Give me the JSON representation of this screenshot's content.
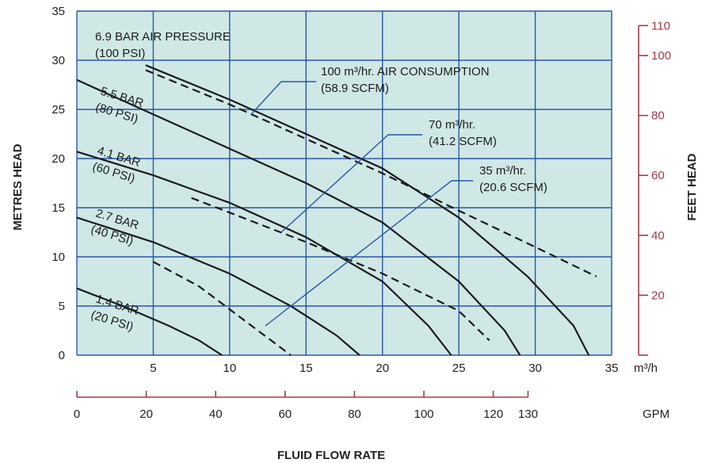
{
  "chart_data": {
    "type": "line",
    "xlabel": "FLUID FLOW RATE",
    "x_unit": "m³/h",
    "x2_unit": "GPM",
    "ylabel": "METRES HEAD",
    "y2label": "FEET HEAD",
    "xlim": [
      0,
      35
    ],
    "ylim": [
      0,
      35
    ],
    "x_ticks": [
      "5",
      "10",
      "15",
      "20",
      "25",
      "30",
      "35"
    ],
    "y_ticks": [
      "0",
      "5",
      "10",
      "15",
      "20",
      "25",
      "30",
      "35"
    ],
    "y2_ticks": [
      "20",
      "40",
      "60",
      "80",
      "100",
      "110"
    ],
    "x2_ticks": [
      "0",
      "20",
      "40",
      "60",
      "80",
      "100",
      "120",
      "130"
    ],
    "series": [
      {
        "name": "6.9 BAR AIR PRESSURE (100 PSI)",
        "values": [
          [
            4.5,
            29.5
          ],
          [
            10,
            26
          ],
          [
            15,
            22.5
          ],
          [
            20,
            19
          ],
          [
            25,
            14
          ],
          [
            29.5,
            8
          ],
          [
            32.5,
            3
          ],
          [
            33.5,
            0
          ]
        ]
      },
      {
        "name": "5.5 BAR (80 PSI)",
        "values": [
          [
            0,
            28
          ],
          [
            5,
            24.5
          ],
          [
            10,
            21
          ],
          [
            15,
            17.5
          ],
          [
            20,
            13.5
          ],
          [
            25,
            7.5
          ],
          [
            28,
            2.5
          ],
          [
            29,
            0
          ]
        ]
      },
      {
        "name": "4.1 BAR (60 PSI)",
        "values": [
          [
            0,
            20.7
          ],
          [
            5,
            18.3
          ],
          [
            10,
            15.5
          ],
          [
            15,
            12
          ],
          [
            20,
            7.5
          ],
          [
            23,
            3
          ],
          [
            24.5,
            0
          ]
        ]
      },
      {
        "name": "2.7 BAR (40 PSI)",
        "values": [
          [
            0,
            14
          ],
          [
            5,
            11.5
          ],
          [
            10,
            8.3
          ],
          [
            14,
            5
          ],
          [
            17,
            2
          ],
          [
            18.5,
            0
          ]
        ]
      },
      {
        "name": "1.4 BAR (20 PSI)",
        "values": [
          [
            0,
            6.8
          ],
          [
            3,
            5
          ],
          [
            6,
            3
          ],
          [
            8,
            1.5
          ],
          [
            9.5,
            0
          ]
        ]
      }
    ],
    "air_consumption": [
      {
        "name": "100 m³/hr. AIR CONSUMPTION (58.9 SCFM)",
        "values": [
          [
            4.5,
            29
          ],
          [
            10,
            25.5
          ],
          [
            15,
            22
          ],
          [
            20,
            18.5
          ],
          [
            25,
            14.7
          ],
          [
            30,
            11
          ],
          [
            34,
            8
          ]
        ]
      },
      {
        "name": "70 m³/hr. (41.2 SCFM)",
        "values": [
          [
            7.5,
            16
          ],
          [
            10,
            14.5
          ],
          [
            15,
            11.5
          ],
          [
            20,
            8.3
          ],
          [
            25,
            4.5
          ],
          [
            27,
            1.5
          ]
        ]
      },
      {
        "name": "35 m³/hr. (20.6 SCFM)",
        "values": [
          [
            5,
            9.5
          ],
          [
            8,
            7
          ],
          [
            11,
            3.5
          ],
          [
            14,
            0
          ]
        ]
      }
    ],
    "annotations": [
      {
        "line1": "6.9 BAR AIR PRESSURE",
        "line2": "(100 PSI)"
      },
      {
        "line1": "5.5 BAR",
        "line2": "(80 PSI)"
      },
      {
        "line1": "4.1 BAR",
        "line2": "(60 PSI)"
      },
      {
        "line1": "2.7 BAR",
        "line2": "(40 PSI)"
      },
      {
        "line1": "1.4 BAR",
        "line2": "(20 PSI)"
      },
      {
        "line1": "100 m³/hr. AIR CONSUMPTION",
        "line2": "(58.9 SCFM)"
      },
      {
        "line1": "70 m³/hr.",
        "line2": "(41.2 SCFM)"
      },
      {
        "line1": "35 m³/hr.",
        "line2": "(20.6 SCFM)"
      }
    ],
    "grid": true,
    "colors": {
      "plot_bg": "#cfe8e6",
      "grid": "#2a55a6",
      "curve": "#1b1b1b",
      "secondary_axis": "#a23a4a"
    }
  }
}
